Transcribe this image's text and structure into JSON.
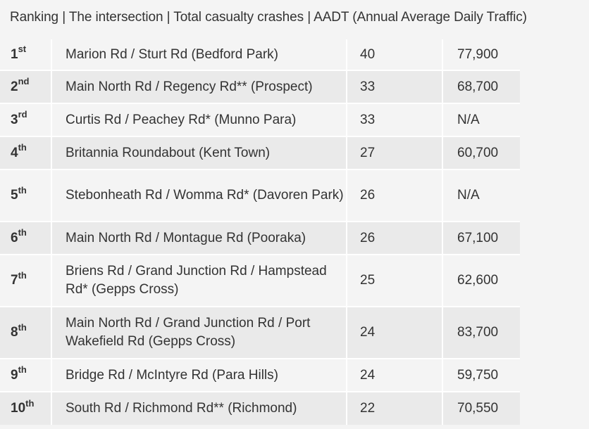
{
  "caption": "Ranking | The intersection | Total casualty crashes | AADT (Annual Average Daily Traffic)",
  "rows": [
    {
      "rank": "1",
      "suffix": "st",
      "intersection": "Marion Rd / Sturt Rd (Bedford Park)",
      "crashes": "40",
      "aadt": "77,900"
    },
    {
      "rank": "2",
      "suffix": "nd",
      "intersection": "Main North Rd / Regency Rd** (Prospect)",
      "crashes": "33",
      "aadt": "68,700"
    },
    {
      "rank": "3",
      "suffix": "rd",
      "intersection": "Curtis Rd / Peachey Rd* (Munno Para)",
      "crashes": "33",
      "aadt": "N/A"
    },
    {
      "rank": "4",
      "suffix": "th",
      "intersection": "Britannia Roundabout (Kent Town)",
      "crashes": "27",
      "aadt": "60,700"
    },
    {
      "rank": "5",
      "suffix": "th",
      "intersection": "Stebonheath Rd / Womma Rd* (Davoren Park)",
      "crashes": "26",
      "aadt": "N/A"
    },
    {
      "rank": "6",
      "suffix": "th",
      "intersection": "Main North Rd / Montague Rd (Pooraka)",
      "crashes": "26",
      "aadt": "67,100"
    },
    {
      "rank": "7",
      "suffix": "th",
      "intersection": "Briens Rd / Grand Junction Rd / Hampstead Rd* (Gepps Cross)",
      "crashes": "25",
      "aadt": "62,600"
    },
    {
      "rank": "8",
      "suffix": "th",
      "intersection": "Main North Rd / Grand Junction Rd / Port Wakefield Rd (Gepps Cross)",
      "crashes": "24",
      "aadt": "83,700"
    },
    {
      "rank": "9",
      "suffix": "th",
      "intersection": "Bridge Rd / McIntyre Rd (Para Hills)",
      "crashes": "24",
      "aadt": "59,750"
    },
    {
      "rank": "10",
      "suffix": "th",
      "intersection": "South Rd / Richmond Rd** (Richmond)",
      "crashes": "22",
      "aadt": "70,550"
    }
  ]
}
